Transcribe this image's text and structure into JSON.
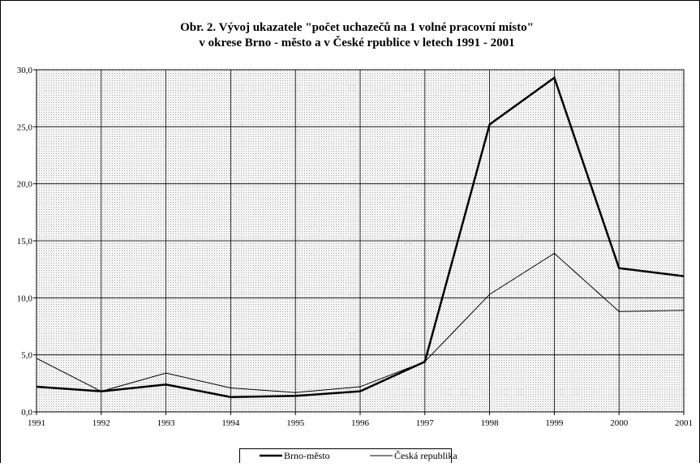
{
  "chart_data": {
    "type": "line",
    "title": [
      "Obr. 2. Vývoj ukazatele \"počet uchazečů na 1 volné pracovní místo\"",
      "v okrese Brno - město a v České rpublice v letech 1991 - 2001"
    ],
    "x": [
      1991,
      1992,
      1993,
      1994,
      1995,
      1996,
      1997,
      1998,
      1999,
      2000,
      2001
    ],
    "xlim": [
      1991,
      2001
    ],
    "xticks": [
      1991,
      1992,
      1993,
      1994,
      1995,
      1996,
      1997,
      1998,
      1999,
      2000,
      2001
    ],
    "ylim": [
      0,
      30
    ],
    "yticks": [
      {
        "value": 0,
        "label": "0,0"
      },
      {
        "value": 5,
        "label": "5,0"
      },
      {
        "value": 10,
        "label": "10,0"
      },
      {
        "value": 15,
        "label": "15,0"
      },
      {
        "value": 20,
        "label": "20,0"
      },
      {
        "value": 25,
        "label": "25,0"
      },
      {
        "value": 30,
        "label": "30,0"
      }
    ],
    "grid": true,
    "legend": "bottom",
    "series": [
      {
        "name": "Brno-město",
        "color": "#000000",
        "line_width": 2.5,
        "values": [
          2.2,
          1.8,
          2.4,
          1.3,
          1.4,
          1.8,
          4.4,
          25.2,
          29.3,
          12.6,
          11.9
        ]
      },
      {
        "name": "Česká republika",
        "color": "#000000",
        "line_width": 1,
        "values": [
          4.7,
          1.8,
          3.4,
          2.1,
          1.7,
          2.2,
          4.4,
          10.3,
          13.9,
          8.8,
          8.9
        ]
      }
    ]
  }
}
